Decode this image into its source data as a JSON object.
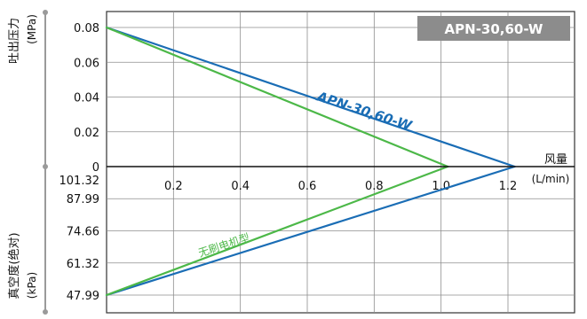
{
  "chart_data": {
    "type": "line",
    "title_badge": "APN-30,60-W",
    "xlabel_line1": "风量",
    "xlabel_line2": "(L/min)",
    "xticks": [
      {
        "value": 0.2,
        "label": "0.2"
      },
      {
        "value": 0.4,
        "label": "0.4"
      },
      {
        "value": 0.6,
        "label": "0.6"
      },
      {
        "value": 0.8,
        "label": "0.8"
      },
      {
        "value": 1.0,
        "label": "1.0"
      },
      {
        "value": 1.2,
        "label": "1.2"
      }
    ],
    "xlim": [
      0,
      1.4
    ],
    "pressure_axis": {
      "label_line1": "吐出压力",
      "label_line2": "(MPa)",
      "ylim": [
        0,
        0.09
      ],
      "ticks": [
        "0.08",
        "0.06",
        "0.04",
        "0.02",
        "0"
      ],
      "tick_values": [
        0.08,
        0.06,
        0.04,
        0.02,
        0
      ]
    },
    "vacuum_axis": {
      "label_line1": "真空度(绝对)",
      "label_line2": "(kPa)",
      "ticks": [
        "101.32",
        "87.99",
        "74.66",
        "61.32",
        "47.99"
      ],
      "tick_values": [
        101.32,
        87.99,
        74.66,
        61.32,
        47.99
      ]
    },
    "series": [
      {
        "name": "APN-30,60-W",
        "color": "#1a6db5",
        "pressure": [
          {
            "x": 0,
            "y": 0.08
          },
          {
            "x": 1.22,
            "y": 0
          }
        ],
        "vacuum": [
          {
            "x": 0,
            "y": 47.99
          },
          {
            "x": 1.22,
            "y": 101.32
          }
        ]
      },
      {
        "name": "无刷电机型",
        "color": "#4cb848",
        "pressure": [
          {
            "x": 0,
            "y": 0.08
          },
          {
            "x": 1.02,
            "y": 0
          }
        ],
        "vacuum": [
          {
            "x": 0,
            "y": 47.99
          },
          {
            "x": 1.02,
            "y": 101.32
          }
        ]
      }
    ],
    "grid": true
  }
}
